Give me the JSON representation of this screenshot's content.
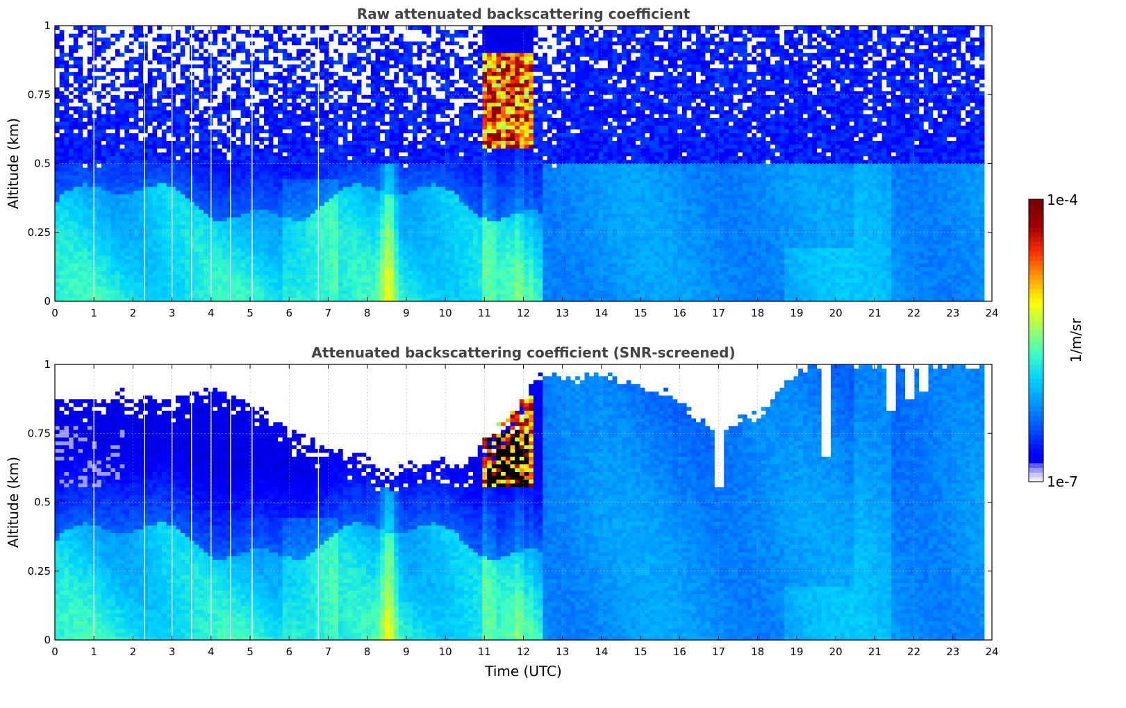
{
  "colormap": {
    "name": "jet-like",
    "stops": [
      "#0000c8",
      "#0000ff",
      "#0050ff",
      "#0096ff",
      "#00d2ff",
      "#40ffc0",
      "#a0ff60",
      "#ffff00",
      "#ffa000",
      "#ff3000",
      "#a00000",
      "#7a0000"
    ],
    "low_stops": [
      "#e8e8ff",
      "#c8c8ff",
      "#9a9aff",
      "#6060ff"
    ]
  },
  "colorbar": {
    "label": "1/m/sr",
    "min_label": "1e-7",
    "max_label": "1e-4",
    "scale": "log"
  },
  "chart_data": [
    {
      "type": "heatmap",
      "title": "Raw attenuated backscattering coefficient",
      "xlabel": "",
      "ylabel": "Altitude (km)",
      "xlim": [
        0,
        24
      ],
      "ylim": [
        0,
        1
      ],
      "xticks": [
        0,
        1,
        2,
        3,
        4,
        5,
        6,
        7,
        8,
        9,
        10,
        11,
        12,
        13,
        14,
        15,
        16,
        17,
        18,
        19,
        20,
        21,
        22,
        23,
        24
      ],
      "yticks": [
        0,
        0.25,
        0.5,
        0.75,
        1
      ],
      "ytick_labels": [
        "0",
        "0.25",
        "0.5",
        "0.75",
        "1"
      ],
      "grid": true,
      "data_end_time": 23.8,
      "gaps": [
        1.0,
        2.3,
        3.0,
        3.5,
        4.0,
        4.5,
        5.05,
        6.75
      ],
      "strong_feature": {
        "x": [
          11.0,
          12.2
        ],
        "y": [
          0.55,
          0.9
        ],
        "description_level": "1e-4"
      }
    },
    {
      "type": "heatmap",
      "title": "Attenuated backscattering coefficient (SNR-screened)",
      "xlabel": "Time (UTC)",
      "ylabel": "Altitude (km)",
      "xlim": [
        0,
        24
      ],
      "ylim": [
        0,
        1
      ],
      "xticks": [
        0,
        1,
        2,
        3,
        4,
        5,
        6,
        7,
        8,
        9,
        10,
        11,
        12,
        13,
        14,
        15,
        16,
        17,
        18,
        19,
        20,
        21,
        22,
        23,
        24
      ],
      "yticks": [
        0,
        0.25,
        0.5,
        0.75,
        1
      ],
      "ytick_labels": [
        "0",
        "0.25",
        "0.5",
        "0.75",
        "1"
      ],
      "grid": true,
      "data_end_time": 23.8,
      "gaps": [
        1.0,
        2.3,
        3.0,
        3.5,
        4.0,
        4.5,
        5.05,
        6.75
      ],
      "screen_top": {
        "time": [
          0,
          1,
          2,
          3,
          4,
          5,
          6,
          6.5,
          7,
          7.5,
          8,
          8.5,
          9,
          9.5,
          10,
          10.5,
          11,
          11.5,
          12,
          12.5,
          13,
          14,
          15,
          16,
          16.5,
          17,
          17.5,
          18,
          18.5,
          19,
          19.5,
          20,
          21,
          22,
          23,
          23.8
        ],
        "altitude": [
          0.88,
          0.87,
          0.9,
          0.86,
          0.93,
          0.86,
          0.78,
          0.73,
          0.7,
          0.68,
          0.66,
          0.6,
          0.63,
          0.64,
          0.66,
          0.62,
          0.73,
          0.78,
          0.88,
          0.97,
          0.95,
          0.96,
          0.92,
          0.88,
          0.8,
          0.76,
          0.8,
          0.81,
          0.9,
          0.97,
          1.0,
          1.0,
          1.0,
          1.0,
          1.0,
          1.0
        ]
      },
      "notches": [
        {
          "x": 17.0,
          "y": 0.56
        },
        {
          "x": 19.8,
          "y": 0.66
        },
        {
          "x": 21.45,
          "y": 0.83
        },
        {
          "x": 21.85,
          "y": 0.88
        },
        {
          "x": 22.25,
          "y": 0.9
        }
      ]
    }
  ]
}
